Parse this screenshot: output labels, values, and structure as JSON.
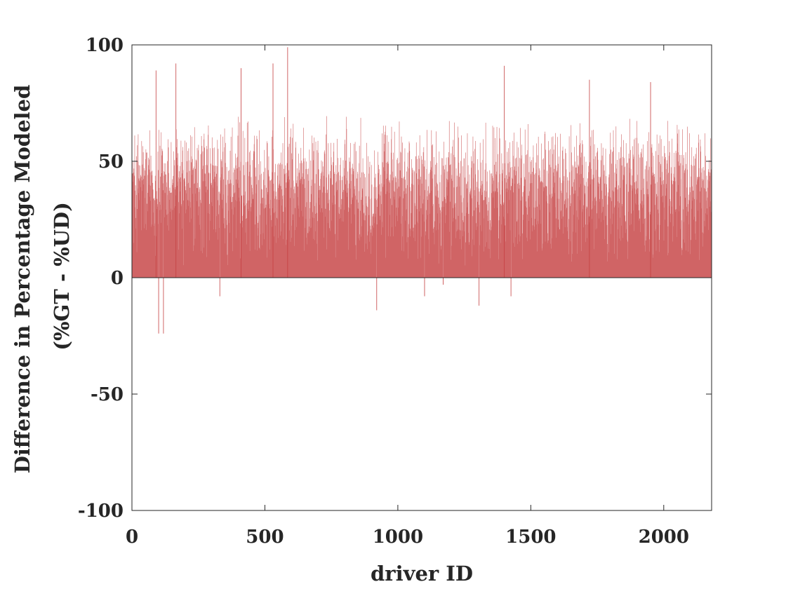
{
  "chart_data": {
    "type": "bar",
    "title": "",
    "xlabel": "driver ID",
    "ylabel_lines": [
      "Difference in Percentage Modeled",
      "(%GT - %UD)"
    ],
    "xlim": [
      0,
      2180
    ],
    "ylim": [
      -100,
      100
    ],
    "xticks": [
      0,
      500,
      1000,
      1500,
      2000
    ],
    "yticks": [
      100,
      50,
      0,
      -50,
      -100
    ],
    "xtick_labels": [
      "0",
      "500",
      "1000",
      "1500",
      "2000"
    ],
    "ytick_labels": [
      "100",
      "50",
      "0",
      "-50",
      "-100"
    ],
    "grid": false,
    "bar_color": "#C03032",
    "n_drivers": 2180,
    "typical_range": [
      5,
      70
    ],
    "highlighted_values": [
      {
        "x": 100,
        "y": -24
      },
      {
        "x": 118,
        "y": -24
      },
      {
        "x": 330,
        "y": -8
      },
      {
        "x": 920,
        "y": -14
      },
      {
        "x": 1100,
        "y": -8
      },
      {
        "x": 1170,
        "y": -3
      },
      {
        "x": 1305,
        "y": -12
      },
      {
        "x": 1425,
        "y": -8
      },
      {
        "x": 90,
        "y": 89
      },
      {
        "x": 165,
        "y": 92
      },
      {
        "x": 410,
        "y": 90
      },
      {
        "x": 530,
        "y": 92
      },
      {
        "x": 585,
        "y": 99
      },
      {
        "x": 1400,
        "y": 91
      },
      {
        "x": 1720,
        "y": 85
      },
      {
        "x": 1950,
        "y": 84
      }
    ]
  }
}
